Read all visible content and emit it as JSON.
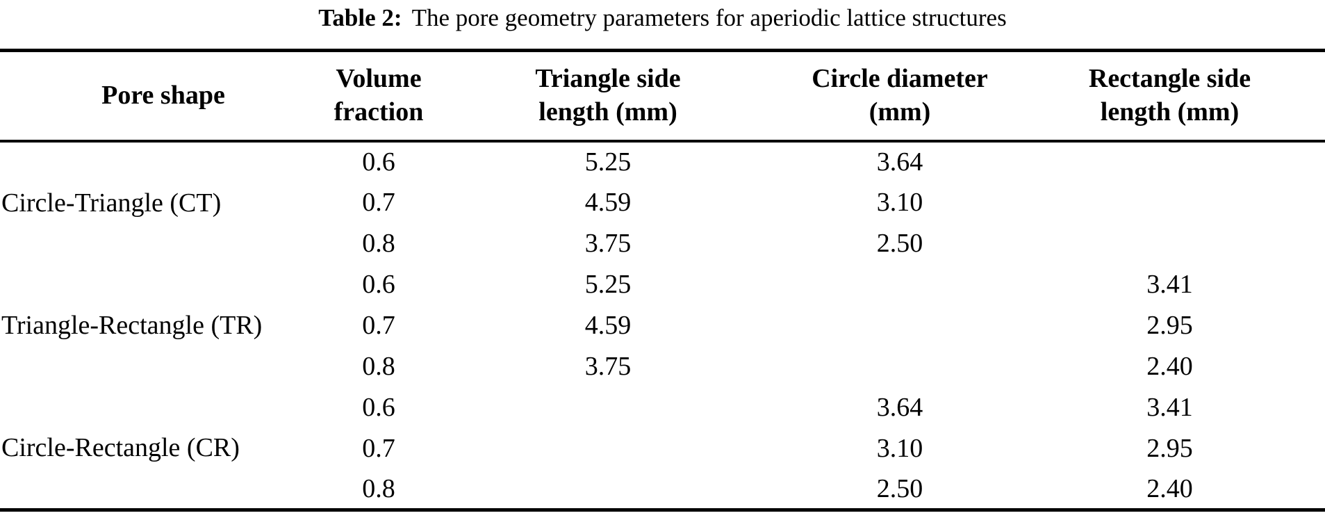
{
  "caption": {
    "label": "Table 2:",
    "text": "The pore geometry parameters for aperiodic lattice structures"
  },
  "table": {
    "headers": {
      "pore_shape": "Pore shape",
      "volume_fraction": {
        "line1": "Volume",
        "line2": "fraction"
      },
      "triangle_side": {
        "line1": "Triangle side",
        "line2": "length (mm)"
      },
      "circle_diameter": {
        "line1": "Circle diameter",
        "line2": "(mm)"
      },
      "rectangle_side": {
        "line1": "Rectangle side",
        "line2": "length (mm)"
      }
    },
    "groups": [
      {
        "label": "Circle-Triangle (CT)",
        "rows": [
          {
            "volume_fraction": "0.6",
            "triangle_side": "5.25",
            "circle_diameter": "3.64",
            "rectangle_side": ""
          },
          {
            "volume_fraction": "0.7",
            "triangle_side": "4.59",
            "circle_diameter": "3.10",
            "rectangle_side": ""
          },
          {
            "volume_fraction": "0.8",
            "triangle_side": "3.75",
            "circle_diameter": "2.50",
            "rectangle_side": ""
          }
        ]
      },
      {
        "label": "Triangle-Rectangle (TR)",
        "rows": [
          {
            "volume_fraction": "0.6",
            "triangle_side": "5.25",
            "circle_diameter": "",
            "rectangle_side": "3.41"
          },
          {
            "volume_fraction": "0.7",
            "triangle_side": "4.59",
            "circle_diameter": "",
            "rectangle_side": "2.95"
          },
          {
            "volume_fraction": "0.8",
            "triangle_side": "3.75",
            "circle_diameter": "",
            "rectangle_side": "2.40"
          }
        ]
      },
      {
        "label": "Circle-Rectangle (CR)",
        "rows": [
          {
            "volume_fraction": "0.6",
            "triangle_side": "",
            "circle_diameter": "3.64",
            "rectangle_side": "3.41"
          },
          {
            "volume_fraction": "0.7",
            "triangle_side": "",
            "circle_diameter": "3.10",
            "rectangle_side": "2.95"
          },
          {
            "volume_fraction": "0.8",
            "triangle_side": "",
            "circle_diameter": "2.50",
            "rectangle_side": "2.40"
          }
        ]
      }
    ]
  },
  "colors": {
    "text": "#000000",
    "background": "#ffffff",
    "rule": "#000000"
  }
}
